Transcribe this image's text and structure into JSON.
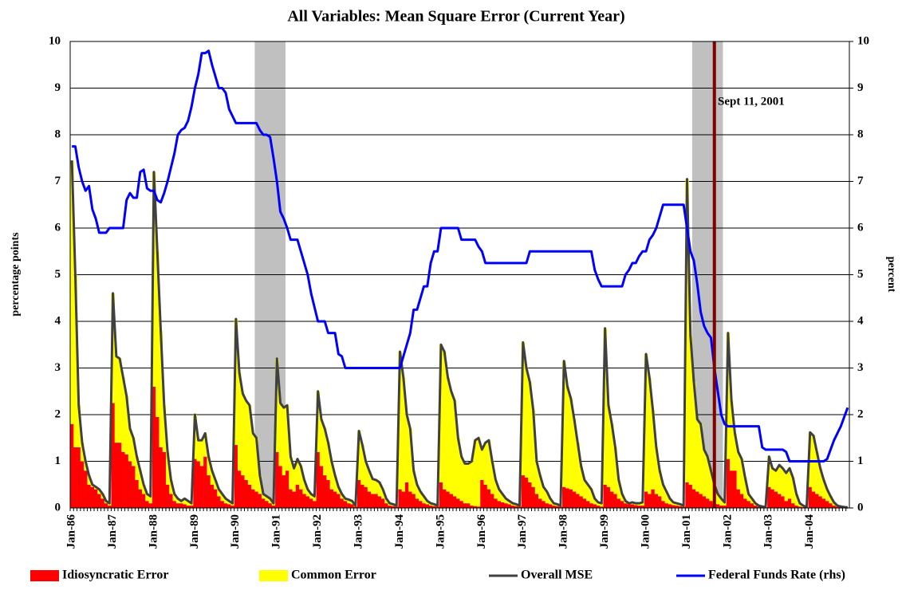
{
  "chart_data": {
    "type": "bar",
    "title": "All Variables: Mean Square Error (Current Year)",
    "ylabel": "percentage points",
    "y2label": "percent",
    "annotation": "Sept 11, 2001",
    "stacked": true,
    "grid": true,
    "legend": "bottom",
    "ylim": [
      0,
      10
    ],
    "yticks": [
      0,
      1,
      2,
      3,
      4,
      5,
      6,
      7,
      8,
      9,
      10
    ],
    "y2lim": [
      0,
      10
    ],
    "y2ticks": [
      0,
      1,
      2,
      3,
      4,
      5,
      6,
      7,
      8,
      9,
      10
    ],
    "categories": [
      "Jan-86",
      null,
      null,
      null,
      null,
      null,
      null,
      null,
      null,
      null,
      null,
      null,
      "Jan-87",
      null,
      null,
      null,
      null,
      null,
      null,
      null,
      null,
      null,
      null,
      null,
      "Jan-88",
      null,
      null,
      null,
      null,
      null,
      null,
      null,
      null,
      null,
      null,
      null,
      "Jan-89",
      null,
      null,
      null,
      null,
      null,
      null,
      null,
      null,
      null,
      null,
      null,
      "Jan-90",
      null,
      null,
      null,
      null,
      null,
      null,
      null,
      null,
      null,
      null,
      null,
      "Jan-91",
      null,
      null,
      null,
      null,
      null,
      null,
      null,
      null,
      null,
      null,
      null,
      "Jan-92",
      null,
      null,
      null,
      null,
      null,
      null,
      null,
      null,
      null,
      null,
      null,
      "Jan-93",
      null,
      null,
      null,
      null,
      null,
      null,
      null,
      null,
      null,
      null,
      null,
      "Jan-94",
      null,
      null,
      null,
      null,
      null,
      null,
      null,
      null,
      null,
      null,
      null,
      "Jan-95",
      null,
      null,
      null,
      null,
      null,
      null,
      null,
      null,
      null,
      null,
      null,
      "Jan-96",
      null,
      null,
      null,
      null,
      null,
      null,
      null,
      null,
      null,
      null,
      null,
      "Jan-97",
      null,
      null,
      null,
      null,
      null,
      null,
      null,
      null,
      null,
      null,
      null,
      "Jan-98",
      null,
      null,
      null,
      null,
      null,
      null,
      null,
      null,
      null,
      null,
      null,
      "Jan-99",
      null,
      null,
      null,
      null,
      null,
      null,
      null,
      null,
      null,
      null,
      null,
      "Jan-00",
      null,
      null,
      null,
      null,
      null,
      null,
      null,
      null,
      null,
      null,
      null,
      "Jan-01",
      null,
      null,
      null,
      null,
      null,
      null,
      null,
      null,
      null,
      null,
      null,
      "Jan-02",
      null,
      null,
      null,
      null,
      null,
      null,
      null,
      null,
      null,
      null,
      null,
      "Jan-03",
      null,
      null,
      null,
      null,
      null,
      null,
      null,
      null,
      null,
      null,
      null,
      "Jan-04",
      null,
      null,
      null,
      null,
      null,
      null,
      null,
      null,
      null,
      null,
      null
    ],
    "series": [
      {
        "name": "Idiosyncratic Error",
        "color": "#ff0000",
        "kind": "bar",
        "values": [
          1.8,
          1.3,
          1.3,
          1.0,
          0.8,
          0.5,
          0.45,
          0.4,
          0.3,
          0.2,
          0.1,
          0.05,
          2.25,
          1.4,
          1.4,
          1.2,
          1.15,
          1.0,
          0.9,
          0.6,
          0.4,
          0.3,
          0.15,
          0.1,
          2.6,
          1.95,
          1.3,
          1.2,
          0.5,
          0.3,
          0.15,
          0.1,
          0.1,
          0.08,
          0.05,
          0.05,
          1.05,
          1.0,
          0.9,
          1.1,
          0.7,
          0.5,
          0.4,
          0.25,
          0.15,
          0.1,
          0.08,
          0.05,
          1.35,
          0.8,
          0.7,
          0.6,
          0.5,
          0.4,
          0.35,
          0.3,
          0.2,
          0.15,
          0.1,
          0.05,
          1.2,
          0.9,
          0.7,
          0.8,
          0.4,
          0.35,
          0.5,
          0.4,
          0.3,
          0.25,
          0.2,
          0.15,
          1.2,
          0.9,
          0.7,
          0.6,
          0.4,
          0.35,
          0.3,
          0.2,
          0.15,
          0.1,
          0.08,
          0.03,
          0.6,
          0.5,
          0.45,
          0.35,
          0.3,
          0.3,
          0.25,
          0.2,
          0.1,
          0.05,
          0.04,
          0.03,
          0.4,
          0.35,
          0.55,
          0.35,
          0.3,
          0.2,
          0.15,
          0.1,
          0.08,
          0.05,
          0.04,
          0.03,
          0.55,
          0.4,
          0.35,
          0.3,
          0.25,
          0.2,
          0.15,
          0.1,
          0.1,
          0.05,
          0.04,
          0.03,
          0.6,
          0.5,
          0.4,
          0.3,
          0.2,
          0.15,
          0.12,
          0.1,
          0.08,
          0.05,
          0.04,
          0.03,
          0.7,
          0.65,
          0.55,
          0.45,
          0.3,
          0.2,
          0.15,
          0.1,
          0.08,
          0.05,
          0.04,
          0.03,
          0.45,
          0.42,
          0.4,
          0.35,
          0.3,
          0.25,
          0.2,
          0.15,
          0.1,
          0.08,
          0.05,
          0.03,
          0.5,
          0.45,
          0.35,
          0.3,
          0.2,
          0.15,
          0.1,
          0.08,
          0.08,
          0.06,
          0.05,
          0.05,
          0.35,
          0.3,
          0.4,
          0.3,
          0.25,
          0.15,
          0.1,
          0.08,
          0.06,
          0.05,
          0.04,
          0.03,
          0.55,
          0.5,
          0.4,
          0.35,
          0.3,
          0.25,
          0.2,
          0.15,
          0.1,
          0.08,
          0.05,
          0.05,
          1.05,
          0.8,
          0.8,
          0.4,
          0.3,
          0.2,
          0.15,
          0.1,
          0.05,
          0.03,
          0.02,
          0.01,
          0.45,
          0.4,
          0.35,
          0.3,
          0.25,
          0.15,
          0.2,
          0.1,
          0.05,
          0.03,
          0.02,
          0.01,
          0.45,
          0.35,
          0.3,
          0.25,
          0.2,
          0.15,
          0.1,
          0.05,
          0.03,
          0.02,
          0.01,
          0.01
        ]
      },
      {
        "name": "Common Error",
        "color": "#ffff00",
        "kind": "bar",
        "values": [
          5.65,
          3.7,
          0.9,
          0.4,
          0.2,
          0.2,
          0.05,
          0.05,
          0.1,
          0.1,
          0.05,
          0.05,
          2.35,
          1.85,
          1.8,
          1.6,
          1.25,
          0.7,
          0.6,
          0.5,
          0.4,
          0.2,
          0.15,
          0.15,
          4.6,
          3.55,
          2.5,
          1.0,
          0.7,
          0.3,
          0.15,
          0.1,
          0.05,
          0.12,
          0.1,
          0.05,
          0.95,
          0.45,
          0.55,
          0.5,
          0.4,
          0.3,
          0.2,
          0.15,
          0.15,
          0.1,
          0.07,
          0.05,
          2.7,
          2.1,
          1.75,
          1.7,
          1.7,
          1.2,
          1.15,
          0.4,
          0.1,
          0.1,
          0.1,
          0.05,
          2.0,
          1.35,
          1.45,
          1.4,
          0.7,
          0.5,
          0.55,
          0.5,
          0.3,
          0.15,
          0.1,
          0.1,
          1.3,
          1.0,
          1.0,
          0.8,
          0.6,
          0.35,
          0.15,
          0.1,
          0.05,
          0.08,
          0.07,
          0.02,
          1.05,
          0.85,
          0.55,
          0.45,
          0.32,
          0.3,
          0.3,
          0.2,
          0.1,
          0.05,
          0.04,
          0.02,
          2.95,
          2.45,
          1.45,
          1.35,
          0.5,
          0.3,
          0.2,
          0.15,
          0.07,
          0.05,
          0.04,
          0.02,
          2.95,
          2.95,
          2.45,
          2.2,
          2.05,
          1.3,
          0.95,
          0.85,
          0.85,
          0.95,
          1.41,
          1.47,
          0.65,
          0.9,
          1.05,
          0.7,
          0.4,
          0.25,
          0.18,
          0.1,
          0.07,
          0.05,
          0.04,
          0.02,
          2.85,
          2.35,
          2.15,
          1.65,
          0.7,
          0.5,
          0.3,
          0.25,
          0.12,
          0.05,
          0.04,
          0.02,
          2.7,
          2.18,
          1.95,
          1.55,
          1.1,
          0.65,
          0.4,
          0.35,
          0.3,
          0.12,
          0.07,
          0.07,
          3.35,
          1.75,
          1.45,
          1.0,
          0.4,
          0.15,
          0.05,
          0.02,
          0.04,
          0.04,
          0.05,
          0.07,
          2.95,
          2.5,
          1.7,
          1.0,
          0.55,
          0.35,
          0.25,
          0.12,
          0.06,
          0.05,
          0.04,
          0.02,
          6.5,
          3.2,
          2.3,
          1.55,
          1.5,
          1.0,
          0.9,
          0.65,
          0.4,
          0.22,
          0.15,
          0.07,
          2.7,
          1.5,
          0.8,
          0.8,
          0.75,
          0.45,
          0.15,
          0.1,
          0.05,
          0.02,
          0.01,
          0.01,
          0.65,
          0.45,
          0.45,
          0.62,
          0.6,
          0.6,
          0.65,
          0.55,
          0.25,
          0.07,
          0.03,
          0.01,
          1.17,
          1.2,
          0.9,
          0.6,
          0.4,
          0.25,
          0.15,
          0.07,
          0.02,
          0.01,
          0.01,
          0.0
        ]
      },
      {
        "name": "Overall MSE",
        "color": "#404040",
        "kind": "line",
        "values": [
          7.45,
          5.0,
          2.2,
          1.4,
          1.0,
          0.7,
          0.5,
          0.45,
          0.4,
          0.3,
          0.15,
          0.1,
          4.6,
          3.25,
          3.2,
          2.8,
          2.4,
          1.7,
          1.5,
          1.1,
          0.8,
          0.5,
          0.3,
          0.25,
          7.2,
          5.5,
          3.8,
          2.2,
          1.2,
          0.6,
          0.3,
          0.2,
          0.15,
          0.2,
          0.15,
          0.1,
          2.0,
          1.45,
          1.45,
          1.6,
          1.1,
          0.8,
          0.6,
          0.4,
          0.3,
          0.2,
          0.15,
          0.1,
          4.05,
          2.9,
          2.45,
          2.3,
          2.2,
          1.6,
          1.5,
          0.7,
          0.3,
          0.25,
          0.2,
          0.1,
          3.2,
          2.25,
          2.15,
          2.2,
          1.1,
          0.85,
          1.05,
          0.9,
          0.6,
          0.4,
          0.3,
          0.25,
          2.5,
          1.9,
          1.7,
          1.4,
          1.0,
          0.7,
          0.45,
          0.3,
          0.2,
          0.18,
          0.15,
          0.05,
          1.65,
          1.35,
          1.0,
          0.8,
          0.62,
          0.6,
          0.55,
          0.4,
          0.2,
          0.1,
          0.08,
          0.05,
          3.35,
          2.8,
          2.0,
          1.7,
          0.8,
          0.5,
          0.35,
          0.25,
          0.15,
          0.1,
          0.08,
          0.05,
          3.5,
          3.35,
          2.8,
          2.5,
          2.3,
          1.5,
          1.1,
          0.95,
          0.95,
          1.0,
          1.45,
          1.5,
          1.25,
          1.4,
          1.45,
          1.0,
          0.6,
          0.4,
          0.3,
          0.2,
          0.15,
          0.1,
          0.08,
          0.05,
          3.55,
          3.0,
          2.7,
          2.1,
          1.0,
          0.7,
          0.45,
          0.35,
          0.2,
          0.1,
          0.08,
          0.05,
          3.15,
          2.6,
          2.35,
          1.9,
          1.4,
          0.9,
          0.6,
          0.5,
          0.4,
          0.2,
          0.12,
          0.1,
          3.85,
          2.2,
          1.8,
          1.3,
          0.6,
          0.3,
          0.15,
          0.1,
          0.12,
          0.1,
          0.1,
          0.12,
          3.3,
          2.8,
          2.1,
          1.3,
          0.8,
          0.5,
          0.35,
          0.2,
          0.12,
          0.1,
          0.08,
          0.05,
          7.05,
          3.7,
          2.7,
          1.9,
          1.8,
          1.25,
          1.1,
          0.8,
          0.5,
          0.3,
          0.2,
          0.12,
          3.75,
          2.3,
          1.6,
          1.2,
          1.05,
          0.65,
          0.3,
          0.2,
          0.1,
          0.05,
          0.03,
          0.02,
          1.1,
          0.85,
          0.8,
          0.92,
          0.85,
          0.75,
          0.85,
          0.65,
          0.3,
          0.1,
          0.05,
          0.02,
          1.62,
          1.55,
          1.2,
          0.85,
          0.6,
          0.4,
          0.25,
          0.12,
          0.05,
          0.03,
          0.02,
          0.01
        ]
      },
      {
        "name": "Federal Funds Rate (rhs)",
        "color": "#0000ff",
        "kind": "line",
        "axis": "y2",
        "values": [
          7.75,
          7.75,
          7.3,
          7.0,
          6.8,
          6.9,
          6.4,
          6.2,
          5.9,
          5.9,
          5.9,
          6.0,
          6.0,
          6.0,
          6.0,
          6.0,
          6.6,
          6.75,
          6.65,
          6.65,
          7.2,
          7.25,
          6.85,
          6.8,
          6.8,
          6.6,
          6.55,
          6.75,
          7.0,
          7.3,
          7.6,
          8.0,
          8.1,
          8.15,
          8.3,
          8.6,
          9.0,
          9.3,
          9.75,
          9.75,
          9.8,
          9.5,
          9.25,
          9.0,
          9.0,
          8.9,
          8.55,
          8.4,
          8.25,
          8.25,
          8.25,
          8.25,
          8.25,
          8.25,
          8.25,
          8.1,
          8.0,
          8.0,
          7.95,
          7.5,
          7.0,
          6.35,
          6.2,
          6.0,
          5.75,
          5.75,
          5.75,
          5.5,
          5.25,
          5.0,
          4.6,
          4.3,
          4.0,
          4.0,
          4.0,
          3.75,
          3.75,
          3.75,
          3.3,
          3.25,
          3.0,
          3.0,
          3.0,
          3.0,
          3.0,
          3.0,
          3.0,
          3.0,
          3.0,
          3.0,
          3.0,
          3.0,
          3.0,
          3.0,
          3.0,
          3.0,
          3.0,
          3.25,
          3.5,
          3.75,
          4.25,
          4.25,
          4.5,
          4.75,
          4.75,
          5.25,
          5.5,
          5.5,
          6.0,
          6.0,
          6.0,
          6.0,
          6.0,
          6.0,
          5.75,
          5.75,
          5.75,
          5.75,
          5.75,
          5.6,
          5.5,
          5.25,
          5.25,
          5.25,
          5.25,
          5.25,
          5.25,
          5.25,
          5.25,
          5.25,
          5.25,
          5.25,
          5.25,
          5.25,
          5.5,
          5.5,
          5.5,
          5.5,
          5.5,
          5.5,
          5.5,
          5.5,
          5.5,
          5.5,
          5.5,
          5.5,
          5.5,
          5.5,
          5.5,
          5.5,
          5.5,
          5.5,
          5.5,
          5.1,
          4.9,
          4.75,
          4.75,
          4.75,
          4.75,
          4.75,
          4.75,
          4.75,
          5.0,
          5.1,
          5.25,
          5.25,
          5.4,
          5.5,
          5.5,
          5.75,
          5.85,
          6.0,
          6.25,
          6.5,
          6.5,
          6.5,
          6.5,
          6.5,
          6.5,
          6.5,
          6.0,
          5.5,
          5.3,
          4.8,
          4.2,
          3.9,
          3.75,
          3.65,
          3.0,
          2.5,
          2.0,
          1.8,
          1.75,
          1.75,
          1.75,
          1.75,
          1.75,
          1.75,
          1.75,
          1.75,
          1.75,
          1.75,
          1.3,
          1.25,
          1.25,
          1.25,
          1.25,
          1.25,
          1.25,
          1.2,
          1.0,
          1.0,
          1.0,
          1.0,
          1.0,
          1.0,
          1.0,
          1.0,
          1.0,
          1.0,
          1.0,
          1.05,
          1.25,
          1.45,
          1.6,
          1.75,
          1.95,
          2.15
        ]
      }
    ]
  }
}
